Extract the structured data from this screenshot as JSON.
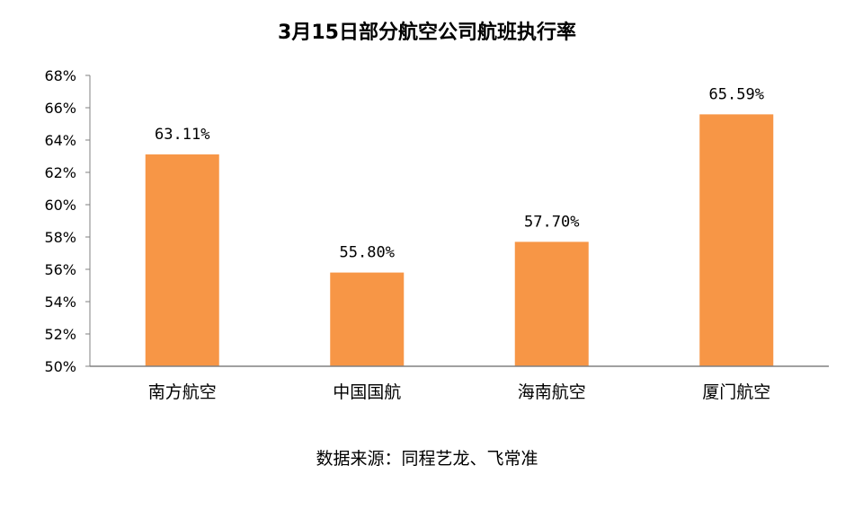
{
  "chart_data": {
    "type": "bar",
    "title": "3月15日部分航空公司航班执行率",
    "categories": [
      "南方航空",
      "中国国航",
      "海南航空",
      "厦门航空"
    ],
    "values": [
      63.11,
      55.8,
      57.7,
      65.59
    ],
    "data_labels": [
      "63.11%",
      "55.80%",
      "57.70%",
      "65.59%"
    ],
    "ylim": [
      50,
      68
    ],
    "yticks": [
      50,
      52,
      54,
      56,
      58,
      60,
      62,
      64,
      66,
      68
    ],
    "ytick_labels": [
      "50%",
      "52%",
      "54%",
      "56%",
      "58%",
      "60%",
      "62%",
      "64%",
      "66%",
      "68%"
    ],
    "grid": false,
    "legend": "none",
    "bar_color": "#F79646",
    "axis_color": "#808080"
  },
  "source": "数据来源：同程艺龙、飞常准"
}
